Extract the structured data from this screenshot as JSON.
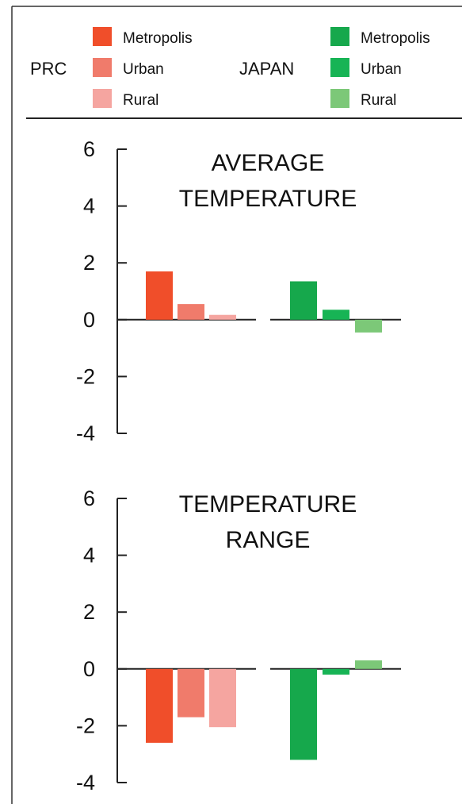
{
  "legend": {
    "groups": [
      {
        "name": "PRC",
        "entries": [
          {
            "label": "Metropolis",
            "color": "#f04e2a"
          },
          {
            "label": "Urban",
            "color": "#f07b6b"
          },
          {
            "label": "Rural",
            "color": "#f5a5a0"
          }
        ]
      },
      {
        "name": "JAPAN",
        "entries": [
          {
            "label": "Metropolis",
            "color": "#16a84c"
          },
          {
            "label": "Urban",
            "color": "#17b455"
          },
          {
            "label": "Rural",
            "color": "#7cc878"
          }
        ]
      }
    ]
  },
  "chart_data": [
    {
      "type": "bar",
      "title": [
        "AVERAGE",
        "TEMPERATURE"
      ],
      "ylim": [
        -4,
        6
      ],
      "yticks": [
        "6",
        "4",
        "2",
        "0",
        "-2",
        "-4"
      ],
      "groups": [
        "PRC",
        "JAPAN"
      ],
      "categories": [
        "Metropolis",
        "Urban",
        "Rural"
      ],
      "series": [
        {
          "group": "PRC",
          "values": [
            1.7,
            0.55,
            0.17
          ]
        },
        {
          "group": "JAPAN",
          "values": [
            1.35,
            0.35,
            -0.45
          ]
        }
      ],
      "grid": false
    },
    {
      "type": "bar",
      "title": [
        "TEMPERATURE",
        "RANGE"
      ],
      "ylim": [
        -4,
        6
      ],
      "yticks": [
        "6",
        "4",
        "2",
        "0",
        "-2",
        "-4"
      ],
      "groups": [
        "PRC",
        "JAPAN"
      ],
      "categories": [
        "Metropolis",
        "Urban",
        "Rural"
      ],
      "series": [
        {
          "group": "PRC",
          "values": [
            -2.6,
            -1.7,
            -2.05
          ]
        },
        {
          "group": "JAPAN",
          "values": [
            -3.2,
            -0.2,
            0.3
          ]
        }
      ],
      "grid": false
    }
  ]
}
